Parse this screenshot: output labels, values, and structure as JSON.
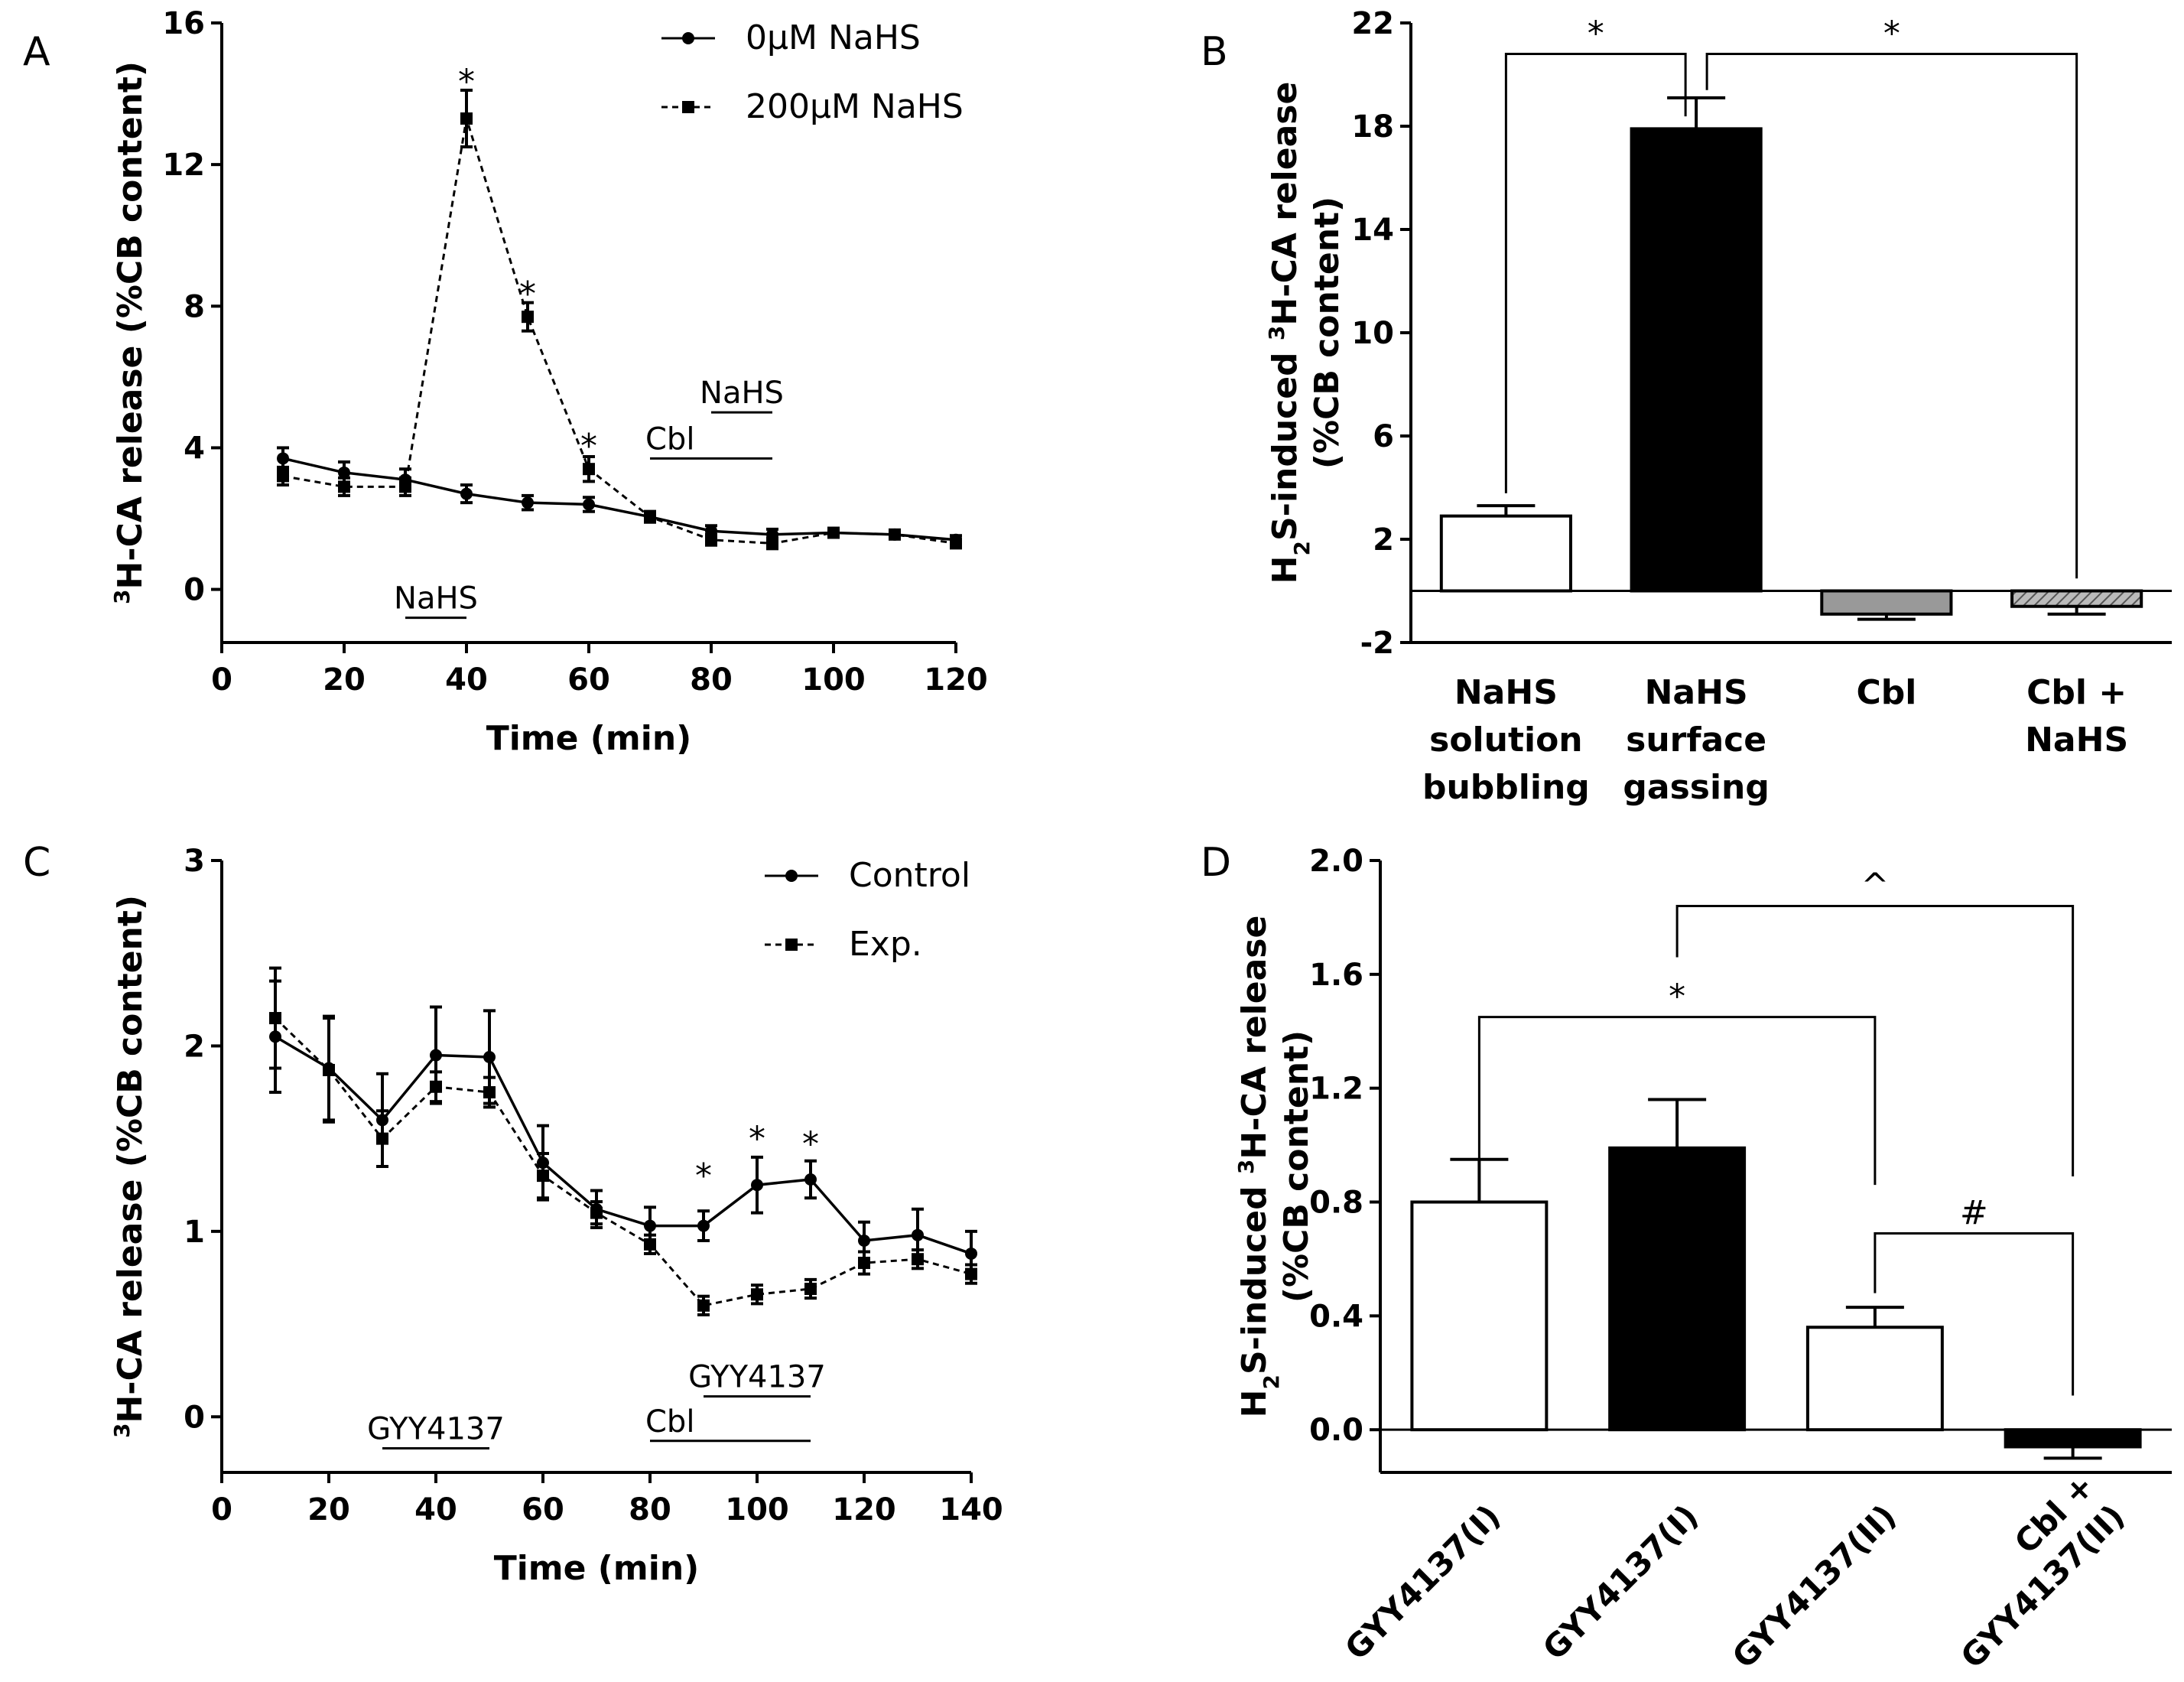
{
  "figure": {
    "panels": [
      "A",
      "B",
      "C",
      "D"
    ]
  },
  "chart_data": [
    {
      "panel": "A",
      "type": "line",
      "xlabel": "Time (min)",
      "ylabel_sup": "3",
      "ylabel": "H-CA release (%CB content)",
      "xlim": [
        0,
        120
      ],
      "ylim": [
        -1.5,
        16
      ],
      "xticks": [
        0,
        20,
        40,
        60,
        80,
        100,
        120
      ],
      "yticks": [
        0,
        4,
        8,
        12,
        16
      ],
      "x": [
        10,
        20,
        30,
        40,
        50,
        60,
        70,
        80,
        90,
        100,
        110,
        120
      ],
      "series": [
        {
          "name": "0µM NaHS",
          "style": "solid",
          "marker": "circle",
          "values": [
            3.7,
            3.3,
            3.1,
            2.7,
            2.45,
            2.4,
            2.05,
            1.65,
            1.55,
            1.6,
            1.55,
            1.4
          ],
          "errors": [
            0.3,
            0.3,
            0.3,
            0.25,
            0.2,
            0.2,
            0.15,
            0.15,
            0.15,
            0.12,
            0.12,
            0.12
          ]
        },
        {
          "name": "200µM NaHS",
          "style": "dashed",
          "marker": "square",
          "values": [
            3.2,
            2.9,
            2.9,
            13.3,
            7.7,
            3.4,
            2.05,
            1.4,
            1.3,
            1.6,
            1.55,
            1.3
          ],
          "errors": [
            0.25,
            0.25,
            0.25,
            0.8,
            0.4,
            0.35,
            0.15,
            0.15,
            0.15,
            0.12,
            0.12,
            0.12
          ]
        }
      ],
      "significance": [
        {
          "x": 40,
          "y": 14.5,
          "label": "*"
        },
        {
          "x": 50,
          "y": 8.5,
          "label": "*"
        },
        {
          "x": 60,
          "y": 4.2,
          "label": "*"
        }
      ],
      "treatment_bars": [
        {
          "label": "NaHS",
          "x0": 30,
          "x1": 40,
          "y": -0.8,
          "label_pos": "above"
        },
        {
          "label": "Cbl",
          "x0": 70,
          "x1": 90,
          "y": 3.7,
          "label_pos": "above-left"
        },
        {
          "label": "NaHS",
          "x0": 80,
          "x1": 90,
          "y": 5.0,
          "label_pos": "above"
        }
      ]
    },
    {
      "panel": "B",
      "type": "bar",
      "ylabel_line1_pre": "H",
      "ylabel_line1_sub": "2",
      "ylabel_line1_mid": "S-induced ",
      "ylabel_line1_sup": "3",
      "ylabel_line1_post": "H-CA release",
      "ylabel_line2": "(%CB content)",
      "ylim": [
        -2,
        22
      ],
      "yticks": [
        -2,
        2,
        6,
        10,
        14,
        18,
        22
      ],
      "categories": [
        {
          "lines": [
            "NaHS",
            "solution",
            "bubbling"
          ]
        },
        {
          "lines": [
            "NaHS",
            "surface",
            "gassing"
          ]
        },
        {
          "lines": [
            "Cbl"
          ]
        },
        {
          "lines": [
            "Cbl +",
            "NaHS"
          ]
        }
      ],
      "values": [
        2.9,
        17.9,
        -0.9,
        -0.6
      ],
      "errors": [
        0.4,
        1.2,
        0.2,
        0.3
      ],
      "fills": [
        "#ffffff",
        "#000000",
        "#999999",
        "hatch"
      ],
      "brackets": [
        {
          "from": 0,
          "to": 1,
          "label": "*",
          "y": 20.8
        },
        {
          "from": 1,
          "to": 3,
          "label": "*",
          "y": 20.8
        }
      ]
    },
    {
      "panel": "C",
      "type": "line",
      "xlabel": "Time (min)",
      "ylabel_sup": "3",
      "ylabel": "H-CA release (%CB content)",
      "xlim": [
        0,
        140
      ],
      "ylim": [
        -0.3,
        3
      ],
      "xticks": [
        0,
        20,
        40,
        60,
        80,
        100,
        120,
        140
      ],
      "yticks": [
        0,
        1,
        2,
        3
      ],
      "x": [
        10,
        20,
        30,
        40,
        50,
        60,
        70,
        80,
        90,
        100,
        110,
        120,
        130,
        140
      ],
      "series": [
        {
          "name": "Control",
          "style": "solid",
          "marker": "circle",
          "values": [
            2.05,
            1.88,
            1.6,
            1.95,
            1.94,
            1.37,
            1.12,
            1.03,
            1.03,
            1.25,
            1.28,
            0.95,
            0.98,
            0.88
          ],
          "errors": [
            0.3,
            0.28,
            0.25,
            0.26,
            0.25,
            0.2,
            0.1,
            0.1,
            0.08,
            0.15,
            0.1,
            0.1,
            0.14,
            0.12
          ]
        },
        {
          "name": "Exp.",
          "style": "dashed",
          "marker": "square",
          "values": [
            2.15,
            1.87,
            1.5,
            1.78,
            1.75,
            1.3,
            1.1,
            0.93,
            0.6,
            0.66,
            0.69,
            0.83,
            0.85,
            0.77
          ]
        },
        {
          "name": "_errors_exp",
          "hidden": true,
          "values": [
            0.27,
            0.28,
            0.15,
            0.08,
            0.08,
            0.12,
            0.06,
            0.05,
            0.05,
            0.05,
            0.05,
            0.06,
            0.05,
            0.05
          ]
        }
      ],
      "significance": [
        {
          "x": 90,
          "y": 1.33,
          "label": "*"
        },
        {
          "x": 100,
          "y": 1.53,
          "label": "*"
        },
        {
          "x": 110,
          "y": 1.5,
          "label": "*"
        }
      ],
      "treatment_bars": [
        {
          "label": "GYY4137",
          "x0": 30,
          "x1": 50,
          "y": -0.17,
          "label_pos": "above"
        },
        {
          "label": "Cbl",
          "x0": 80,
          "x1": 110,
          "y": -0.13,
          "label_pos": "above-left"
        },
        {
          "label": "GYY4137",
          "x0": 90,
          "x1": 110,
          "y": 0.11,
          "label_pos": "above"
        }
      ]
    },
    {
      "panel": "D",
      "type": "bar",
      "ylabel_line1_pre": "H",
      "ylabel_line1_sub": "2",
      "ylabel_line1_mid": "S-induced ",
      "ylabel_line1_sup": "3",
      "ylabel_line1_post": "H-CA release",
      "ylabel_line2": "(%CB content)",
      "ylim": [
        -0.15,
        2.0
      ],
      "yticks": [
        0.0,
        0.4,
        0.8,
        1.2,
        1.6,
        2.0
      ],
      "ytick_format": 1,
      "categories": [
        {
          "lines": [
            "GYY4137(I)"
          ]
        },
        {
          "lines": [
            "GYY4137(I)"
          ]
        },
        {
          "lines": [
            "GYY4137(II)"
          ]
        },
        {
          "lines": [
            "Cbl +",
            "GYY4137(II)"
          ]
        }
      ],
      "values": [
        0.8,
        0.99,
        0.36,
        -0.06
      ],
      "errors": [
        0.15,
        0.17,
        0.07,
        0.04
      ],
      "fills": [
        "#ffffff",
        "#000000",
        "#ffffff",
        "#000000"
      ],
      "brackets": [
        {
          "from": 0,
          "to": 2,
          "label": "*",
          "y": 1.45,
          "drop_to": [
            0.85,
            0.86
          ]
        },
        {
          "from": 1,
          "to": 3,
          "label": "^",
          "y": 1.84,
          "drop_to": [
            1.66,
            0.89
          ]
        },
        {
          "from": 2,
          "to": 3,
          "label": "#",
          "y": 0.69,
          "drop_to": [
            0.48,
            0.12
          ]
        }
      ]
    }
  ]
}
